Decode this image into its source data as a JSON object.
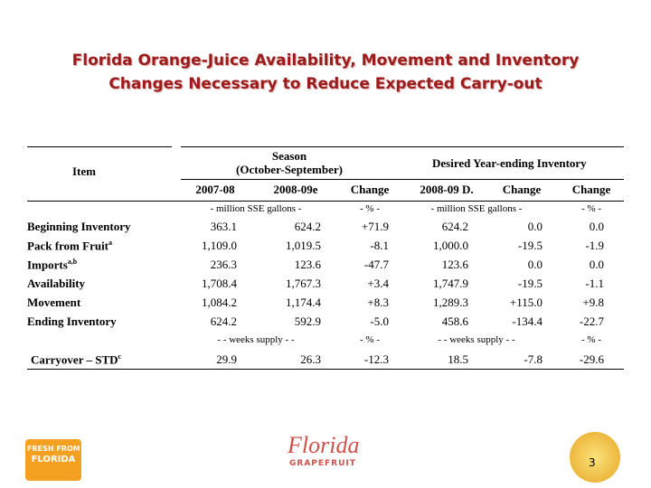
{
  "title": [
    "Florida Orange-Juice Availability, Movement and Inventory",
    "Changes Necessary to Reduce Expected Carry-out"
  ],
  "table": {
    "header": {
      "item": "Item",
      "season": [
        "Season",
        "(October-September)"
      ],
      "desired": "Desired Year-ending Inventory",
      "columns": [
        "2007-08",
        "2008-09e",
        "Change",
        "2008-09 D.",
        "Change",
        "Change"
      ]
    },
    "units": [
      "- million SSE gallons -",
      "- % -",
      "- million SSE gallons -",
      "- % -"
    ],
    "rows": [
      {
        "label": "Beginning Inventory",
        "cells": [
          "363.1",
          "624.2",
          "+71.9",
          "624.2",
          "0.0",
          "0.0"
        ]
      },
      {
        "label": "Pack from Fruit",
        "note": "a",
        "cells": [
          "1,109.0",
          "1,019.5",
          "-8.1",
          "1,000.0",
          "-19.5",
          "-1.9"
        ]
      },
      {
        "label": "Imports",
        "note": "a,b",
        "cells": [
          "236.3",
          "123.6",
          "-47.7",
          "123.6",
          "0.0",
          "0.0"
        ]
      },
      {
        "label": "Availability",
        "cells": [
          "1,708.4",
          "1,767.3",
          "+3.4",
          "1,747.9",
          "-19.5",
          "-1.1"
        ]
      },
      {
        "label": "Movement",
        "cells": [
          "1,084.2",
          "1,174.4",
          "+8.3",
          "1,289.3",
          "+115.0",
          "+9.8"
        ]
      },
      {
        "label": "Ending Inventory",
        "cells": [
          "624.2",
          "592.9",
          "-5.0",
          "458.6",
          "-134.4",
          "-22.7"
        ]
      }
    ],
    "units2": [
      "- - weeks supply - -",
      "- % -",
      "- - weeks supply - -",
      "- % -"
    ],
    "rows2": [
      {
        "label": "Carryover – STD",
        "note": "c",
        "cells": [
          "29.9",
          "26.3",
          "-12.3",
          "18.5",
          "-7.8",
          "-29.6"
        ]
      }
    ]
  },
  "footer": {
    "left_logo": [
      "FRESH FROM",
      "FLORIDA"
    ],
    "center_logo": [
      "Florida",
      "GRAPEFRUIT"
    ],
    "page_number": "3"
  }
}
